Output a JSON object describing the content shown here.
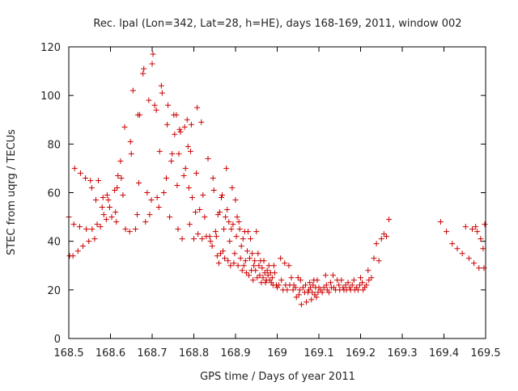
{
  "chart_data": {
    "type": "scatter",
    "title": "Rec. lpal (Lon=342, Lat=28, h=HE), days 168-169, 2011, window 002",
    "xlabel": "GPS time / Days of year 2011",
    "ylabel": "STEC from uqrg / TECUs",
    "xlim": [
      168.5,
      169.5
    ],
    "ylim": [
      0,
      120
    ],
    "x_ticks": [
      "168.5",
      "168.6",
      "168.7",
      "168.8",
      "168.9",
      "169",
      "169.1",
      "169.2",
      "169.3",
      "169.4",
      "169.5"
    ],
    "y_ticks": [
      "0",
      "20",
      "40",
      "60",
      "80",
      "100",
      "120"
    ],
    "grid": false,
    "marker": "+",
    "color": "#cc0000",
    "series": [
      {
        "points": [
          [
            168.5,
            50
          ],
          [
            168.502,
            34
          ],
          [
            168.51,
            34
          ],
          [
            168.512,
            47
          ],
          [
            168.514,
            70
          ],
          [
            168.522,
            36
          ],
          [
            168.526,
            46
          ],
          [
            168.528,
            68
          ],
          [
            168.534,
            38
          ],
          [
            168.54,
            66
          ],
          [
            168.542,
            45
          ],
          [
            168.548,
            40
          ],
          [
            168.552,
            65
          ],
          [
            168.555,
            62
          ],
          [
            168.556,
            45
          ],
          [
            168.562,
            41
          ],
          [
            168.565,
            57
          ],
          [
            168.568,
            47
          ],
          [
            168.571,
            65
          ],
          [
            168.576,
            46
          ],
          [
            168.58,
            54
          ],
          [
            168.582,
            58
          ],
          [
            168.584,
            51
          ],
          [
            168.59,
            49
          ],
          [
            168.592,
            59
          ],
          [
            168.595,
            57
          ],
          [
            168.598,
            54
          ],
          [
            168.603,
            50
          ],
          [
            168.61,
            61
          ],
          [
            168.612,
            52
          ],
          [
            168.614,
            48
          ],
          [
            168.616,
            62
          ],
          [
            168.618,
            67
          ],
          [
            168.624,
            73
          ],
          [
            168.626,
            66
          ],
          [
            168.63,
            59
          ],
          [
            168.634,
            87
          ],
          [
            168.636,
            45
          ],
          [
            168.646,
            44
          ],
          [
            168.648,
            81
          ],
          [
            168.65,
            76
          ],
          [
            168.654,
            102
          ],
          [
            168.66,
            45
          ],
          [
            168.664,
            51
          ],
          [
            168.666,
            92
          ],
          [
            168.668,
            64
          ],
          [
            168.67,
            92
          ],
          [
            168.678,
            109
          ],
          [
            168.68,
            111
          ],
          [
            168.684,
            48
          ],
          [
            168.688,
            60
          ],
          [
            168.692,
            98
          ],
          [
            168.694,
            51
          ],
          [
            168.698,
            57
          ],
          [
            168.7,
            113
          ],
          [
            168.702,
            117
          ],
          [
            168.706,
            96
          ],
          [
            168.71,
            94
          ],
          [
            168.712,
            58
          ],
          [
            168.716,
            54
          ],
          [
            168.718,
            77
          ],
          [
            168.722,
            104
          ],
          [
            168.724,
            101
          ],
          [
            168.728,
            60
          ],
          [
            168.734,
            66
          ],
          [
            168.736,
            88
          ],
          [
            168.738,
            96
          ],
          [
            168.742,
            50
          ],
          [
            168.746,
            73
          ],
          [
            168.748,
            76
          ],
          [
            168.752,
            92
          ],
          [
            168.754,
            84
          ],
          [
            168.758,
            92
          ],
          [
            168.76,
            63
          ],
          [
            168.762,
            45
          ],
          [
            168.764,
            76
          ],
          [
            168.766,
            86
          ],
          [
            168.768,
            85
          ],
          [
            168.772,
            41
          ],
          [
            168.776,
            67
          ],
          [
            168.778,
            87
          ],
          [
            168.78,
            70
          ],
          [
            168.784,
            90
          ],
          [
            168.786,
            79
          ],
          [
            168.788,
            62
          ],
          [
            168.79,
            47
          ],
          [
            168.792,
            77
          ],
          [
            168.794,
            88
          ],
          [
            168.796,
            58
          ],
          [
            168.8,
            41
          ],
          [
            168.804,
            52
          ],
          [
            168.806,
            68
          ],
          [
            168.808,
            95
          ],
          [
            168.81,
            43
          ],
          [
            168.814,
            53
          ],
          [
            168.818,
            89
          ],
          [
            168.82,
            41
          ],
          [
            168.822,
            59
          ],
          [
            168.826,
            50
          ],
          [
            168.83,
            42
          ],
          [
            168.834,
            74
          ],
          [
            168.838,
            42
          ],
          [
            168.84,
            40
          ],
          [
            168.844,
            38
          ],
          [
            168.846,
            66
          ],
          [
            168.848,
            61
          ],
          [
            168.852,
            44
          ],
          [
            168.854,
            42
          ],
          [
            168.856,
            34
          ],
          [
            168.858,
            51
          ],
          [
            168.86,
            31
          ],
          [
            168.862,
            52
          ],
          [
            168.864,
            35
          ],
          [
            168.866,
            58
          ],
          [
            168.868,
            59
          ],
          [
            168.87,
            36
          ],
          [
            168.872,
            45
          ],
          [
            168.874,
            33
          ],
          [
            168.876,
            50
          ],
          [
            168.878,
            70
          ],
          [
            168.88,
            53
          ],
          [
            168.882,
            32
          ],
          [
            168.884,
            48
          ],
          [
            168.886,
            40
          ],
          [
            168.888,
            30
          ],
          [
            168.89,
            45
          ],
          [
            168.892,
            62
          ],
          [
            168.894,
            47
          ],
          [
            168.896,
            31
          ],
          [
            168.898,
            35
          ],
          [
            168.9,
            57
          ],
          [
            168.902,
            42
          ],
          [
            168.904,
            50
          ],
          [
            168.906,
            30
          ],
          [
            168.908,
            48
          ],
          [
            168.91,
            45
          ],
          [
            168.912,
            33
          ],
          [
            168.914,
            38
          ],
          [
            168.916,
            28
          ],
          [
            168.918,
            41
          ],
          [
            168.92,
            30
          ],
          [
            168.922,
            44
          ],
          [
            168.924,
            32
          ],
          [
            168.926,
            27
          ],
          [
            168.928,
            36
          ],
          [
            168.93,
            44
          ],
          [
            168.932,
            26
          ],
          [
            168.934,
            33
          ],
          [
            168.936,
            41
          ],
          [
            168.938,
            28
          ],
          [
            168.94,
            35
          ],
          [
            168.942,
            24
          ],
          [
            168.944,
            30
          ],
          [
            168.946,
            32
          ],
          [
            168.948,
            28
          ],
          [
            168.95,
            44
          ],
          [
            168.952,
            25
          ],
          [
            168.954,
            35
          ],
          [
            168.956,
            30
          ],
          [
            168.958,
            26
          ],
          [
            168.96,
            32
          ],
          [
            168.962,
            23
          ],
          [
            168.964,
            29
          ],
          [
            168.966,
            25
          ],
          [
            168.968,
            32
          ],
          [
            168.97,
            27
          ],
          [
            168.972,
            23
          ],
          [
            168.974,
            24
          ],
          [
            168.976,
            28
          ],
          [
            168.978,
            26
          ],
          [
            168.98,
            30
          ],
          [
            168.982,
            24
          ],
          [
            168.984,
            27
          ],
          [
            168.986,
            23
          ],
          [
            168.988,
            25
          ],
          [
            168.99,
            22
          ],
          [
            168.992,
            30
          ],
          [
            168.994,
            27
          ],
          [
            168.998,
            22
          ],
          [
            169.0,
            21
          ],
          [
            169.004,
            22
          ],
          [
            169.008,
            33
          ],
          [
            169.01,
            24
          ],
          [
            169.014,
            20
          ],
          [
            169.018,
            31
          ],
          [
            169.02,
            22
          ],
          [
            169.024,
            20
          ],
          [
            169.028,
            30
          ],
          [
            169.03,
            22
          ],
          [
            169.034,
            25
          ],
          [
            169.038,
            20
          ],
          [
            169.04,
            22
          ],
          [
            169.044,
            21
          ],
          [
            169.046,
            17
          ],
          [
            169.05,
            25
          ],
          [
            169.052,
            18
          ],
          [
            169.054,
            20
          ],
          [
            169.056,
            24
          ],
          [
            169.058,
            14
          ],
          [
            169.062,
            21
          ],
          [
            169.066,
            19
          ],
          [
            169.068,
            22
          ],
          [
            169.07,
            15
          ],
          [
            169.074,
            19
          ],
          [
            169.076,
            20
          ],
          [
            169.078,
            23
          ],
          [
            169.08,
            21
          ],
          [
            169.082,
            16
          ],
          [
            169.084,
            19
          ],
          [
            169.086,
            22
          ],
          [
            169.088,
            24
          ],
          [
            169.09,
            18
          ],
          [
            169.092,
            21
          ],
          [
            169.094,
            17
          ],
          [
            169.096,
            24
          ],
          [
            169.098,
            19
          ],
          [
            169.1,
            21
          ],
          [
            169.104,
            20
          ],
          [
            169.108,
            19
          ],
          [
            169.112,
            21
          ],
          [
            169.116,
            26
          ],
          [
            169.118,
            22
          ],
          [
            169.12,
            20
          ],
          [
            169.124,
            19
          ],
          [
            169.128,
            23
          ],
          [
            169.13,
            21
          ],
          [
            169.134,
            26
          ],
          [
            169.136,
            21
          ],
          [
            169.14,
            20
          ],
          [
            169.144,
            24
          ],
          [
            169.148,
            22
          ],
          [
            169.15,
            20
          ],
          [
            169.154,
            24
          ],
          [
            169.158,
            21
          ],
          [
            169.16,
            20
          ],
          [
            169.164,
            22
          ],
          [
            169.166,
            20
          ],
          [
            169.17,
            23
          ],
          [
            169.174,
            21
          ],
          [
            169.176,
            20
          ],
          [
            169.18,
            22
          ],
          [
            169.184,
            24
          ],
          [
            169.186,
            20
          ],
          [
            169.19,
            21
          ],
          [
            169.194,
            20
          ],
          [
            169.198,
            22
          ],
          [
            169.2,
            25
          ],
          [
            169.204,
            23
          ],
          [
            169.206,
            20
          ],
          [
            169.21,
            21
          ],
          [
            169.214,
            22
          ],
          [
            169.218,
            28
          ],
          [
            169.22,
            24
          ],
          [
            169.226,
            25
          ],
          [
            169.232,
            33
          ],
          [
            169.238,
            39
          ],
          [
            169.244,
            32
          ],
          [
            169.25,
            41
          ],
          [
            169.256,
            43
          ],
          [
            169.262,
            42
          ],
          [
            169.268,
            49
          ],
          [
            169.392,
            48
          ],
          [
            169.406,
            44
          ],
          [
            169.42,
            39
          ],
          [
            169.432,
            37
          ],
          [
            169.444,
            35
          ],
          [
            169.452,
            46
          ],
          [
            169.46,
            33
          ],
          [
            169.468,
            45
          ],
          [
            169.472,
            31
          ],
          [
            169.476,
            46
          ],
          [
            169.48,
            44
          ],
          [
            169.484,
            29
          ],
          [
            169.488,
            41
          ],
          [
            169.494,
            37
          ],
          [
            169.496,
            29
          ],
          [
            169.498,
            47
          ]
        ]
      }
    ]
  }
}
